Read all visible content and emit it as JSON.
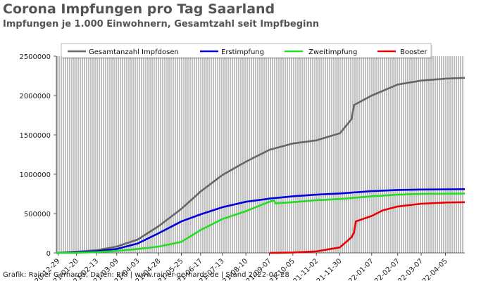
{
  "header": {
    "title": "Corona Impfungen pro Tag Saarland",
    "subtitle": "Impfungen je 1.000 Einwohnern, Gesamtzahl seit Impfbeginn"
  },
  "footer": {
    "text": "Grafik: Rainer Gerhards, Daten: RKI | www.rainer-gerhards.de | Stand 2022-04-28"
  },
  "chart_data": {
    "type": "line",
    "title": "Corona Impfungen pro Tag Saarland",
    "subtitle": "Impfungen je 1.000 Einwohnern, Gesamtzahl seit Impfbeginn",
    "xlabel": "",
    "ylabel": "",
    "x_type": "date",
    "xlim": [
      "2020-12-27",
      "2022-04-28"
    ],
    "ylim": [
      0,
      2500000
    ],
    "yticks": [
      0,
      500000,
      1000000,
      1500000,
      2000000,
      2500000
    ],
    "xticks": [
      "2020-12-29",
      "2021-01-20",
      "2021-02-13",
      "2021-03-09",
      "2021-04-03",
      "2021-04-28",
      "2021-05-25",
      "2021-06-17",
      "2021-07-13",
      "2021-08-10",
      "2021-09-07",
      "2021-10-05",
      "2021-11-02",
      "2021-11-30",
      "2022-01-07",
      "2022-02-07",
      "2022-03-07",
      "2022-04-05"
    ],
    "grid": true,
    "legend_position": "top",
    "background": "daily gray bars of the underlying per-day vaccinations",
    "series": [
      {
        "name": "Gesamtanzahl Impfdosen",
        "color": "#666666",
        "points": [
          [
            "2020-12-27",
            0
          ],
          [
            "2021-01-20",
            15000
          ],
          [
            "2021-02-13",
            35000
          ],
          [
            "2021-03-09",
            80000
          ],
          [
            "2021-04-03",
            170000
          ],
          [
            "2021-04-28",
            340000
          ],
          [
            "2021-05-25",
            560000
          ],
          [
            "2021-06-17",
            780000
          ],
          [
            "2021-07-13",
            990000
          ],
          [
            "2021-08-10",
            1160000
          ],
          [
            "2021-09-07",
            1310000
          ],
          [
            "2021-10-05",
            1390000
          ],
          [
            "2021-11-02",
            1430000
          ],
          [
            "2021-11-30",
            1520000
          ],
          [
            "2021-12-14",
            1700000
          ],
          [
            "2021-12-17",
            1880000
          ],
          [
            "2022-01-07",
            2000000
          ],
          [
            "2022-02-07",
            2140000
          ],
          [
            "2022-03-07",
            2190000
          ],
          [
            "2022-04-05",
            2215000
          ],
          [
            "2022-04-28",
            2225000
          ]
        ]
      },
      {
        "name": "Erstimpfung",
        "color": "#0000dd",
        "points": [
          [
            "2020-12-27",
            0
          ],
          [
            "2021-01-20",
            8000
          ],
          [
            "2021-02-13",
            22000
          ],
          [
            "2021-03-09",
            50000
          ],
          [
            "2021-04-03",
            120000
          ],
          [
            "2021-04-28",
            250000
          ],
          [
            "2021-05-25",
            400000
          ],
          [
            "2021-06-17",
            490000
          ],
          [
            "2021-07-13",
            580000
          ],
          [
            "2021-08-10",
            650000
          ],
          [
            "2021-09-07",
            690000
          ],
          [
            "2021-10-05",
            720000
          ],
          [
            "2021-11-02",
            740000
          ],
          [
            "2021-11-30",
            755000
          ],
          [
            "2022-01-07",
            785000
          ],
          [
            "2022-02-07",
            800000
          ],
          [
            "2022-03-07",
            805000
          ],
          [
            "2022-04-28",
            810000
          ]
        ]
      },
      {
        "name": "Zweitimpfung",
        "color": "#22dd22",
        "points": [
          [
            "2020-12-27",
            0
          ],
          [
            "2021-01-20",
            2000
          ],
          [
            "2021-02-13",
            10000
          ],
          [
            "2021-03-09",
            25000
          ],
          [
            "2021-04-03",
            50000
          ],
          [
            "2021-04-28",
            80000
          ],
          [
            "2021-05-25",
            140000
          ],
          [
            "2021-06-17",
            290000
          ],
          [
            "2021-07-13",
            430000
          ],
          [
            "2021-08-10",
            530000
          ],
          [
            "2021-09-07",
            650000
          ],
          [
            "2021-09-13",
            665000
          ],
          [
            "2021-09-14",
            630000
          ],
          [
            "2021-10-05",
            645000
          ],
          [
            "2021-11-02",
            670000
          ],
          [
            "2021-11-30",
            685000
          ],
          [
            "2022-01-07",
            720000
          ],
          [
            "2022-02-07",
            740000
          ],
          [
            "2022-03-07",
            750000
          ],
          [
            "2022-04-28",
            755000
          ]
        ]
      },
      {
        "name": "Booster",
        "color": "#ee0000",
        "points": [
          [
            "2021-09-07",
            0
          ],
          [
            "2021-10-05",
            5000
          ],
          [
            "2021-11-02",
            20000
          ],
          [
            "2021-11-30",
            70000
          ],
          [
            "2021-12-14",
            200000
          ],
          [
            "2021-12-17",
            260000
          ],
          [
            "2021-12-19",
            400000
          ],
          [
            "2022-01-07",
            470000
          ],
          [
            "2022-01-20",
            540000
          ],
          [
            "2022-02-07",
            590000
          ],
          [
            "2022-03-07",
            625000
          ],
          [
            "2022-04-05",
            640000
          ],
          [
            "2022-04-28",
            645000
          ]
        ]
      }
    ]
  }
}
